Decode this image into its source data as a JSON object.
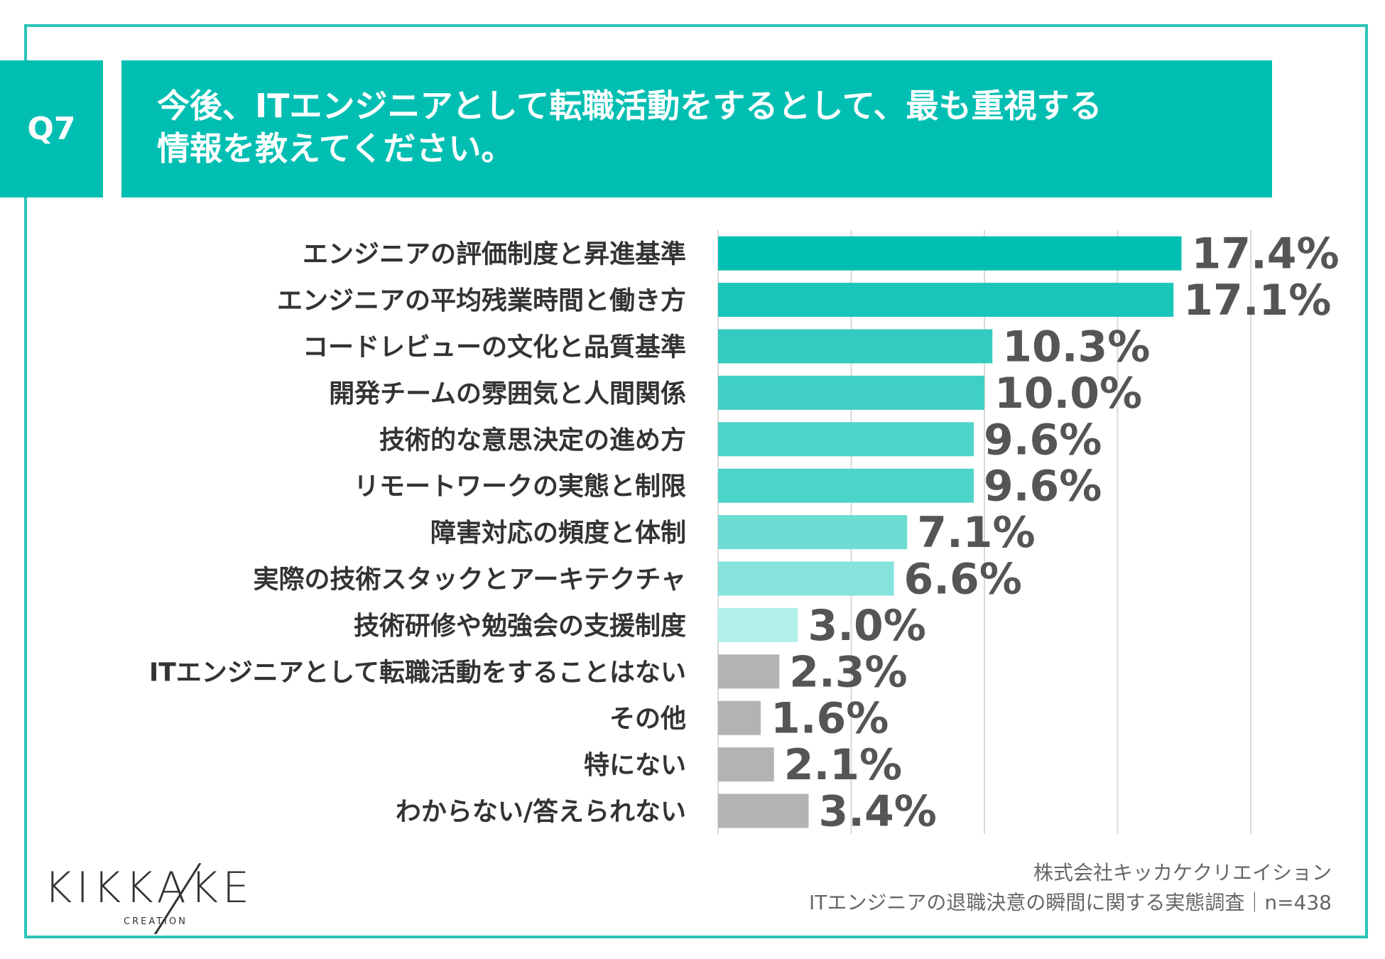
{
  "question": {
    "number": "Q7",
    "title_line1": "今後、ITエンジニアとして転職活動をするとして、最も重視する",
    "title_line2": "情報を教えてください。"
  },
  "chart_data": {
    "type": "bar",
    "orientation": "horizontal",
    "categories": [
      "エンジニアの評価制度と昇進基準",
      "エンジニアの平均残業時間と働き方",
      "コードレビューの文化と品質基準",
      "開発チームの雰囲気と人間関係",
      "技術的な意思決定の進め方",
      "リモートワークの実態と制限",
      "障害対応の頻度と体制",
      "実際の技術スタックとアーキテクチャ",
      "技術研修や勉強会の支援制度",
      "ITエンジニアとして転職活動をすることはない",
      "その他",
      "特にない",
      "わからない/答えられない"
    ],
    "values": [
      17.4,
      17.1,
      10.3,
      10.0,
      9.6,
      9.6,
      7.1,
      6.6,
      3.0,
      2.3,
      1.6,
      2.1,
      3.4
    ],
    "value_labels": [
      "17.4%",
      "17.1%",
      "10.3%",
      "10.0%",
      "9.6%",
      "9.6%",
      "7.1%",
      "6.6%",
      "3.0%",
      "2.3%",
      "1.6%",
      "2.1%",
      "3.4%"
    ],
    "colors": [
      "#00bfb2",
      "#1ac6b9",
      "#33cbc0",
      "#40cfc4",
      "#4dd4c9",
      "#4dd4c9",
      "#6ddcd3",
      "#85e3dc",
      "#b3efea",
      "#b3b3b3",
      "#b3b3b3",
      "#b3b3b3",
      "#b3b3b3"
    ],
    "xlim": [
      0,
      20
    ],
    "grid": true,
    "unit": "%"
  },
  "footer": {
    "logo": "KIKKAKE",
    "logo_sub": "CREATION",
    "company": "株式会社キッカケクリエイション",
    "survey": "ITエンジニアの退職決意の瞬間に関する実態調査｜n=438"
  }
}
